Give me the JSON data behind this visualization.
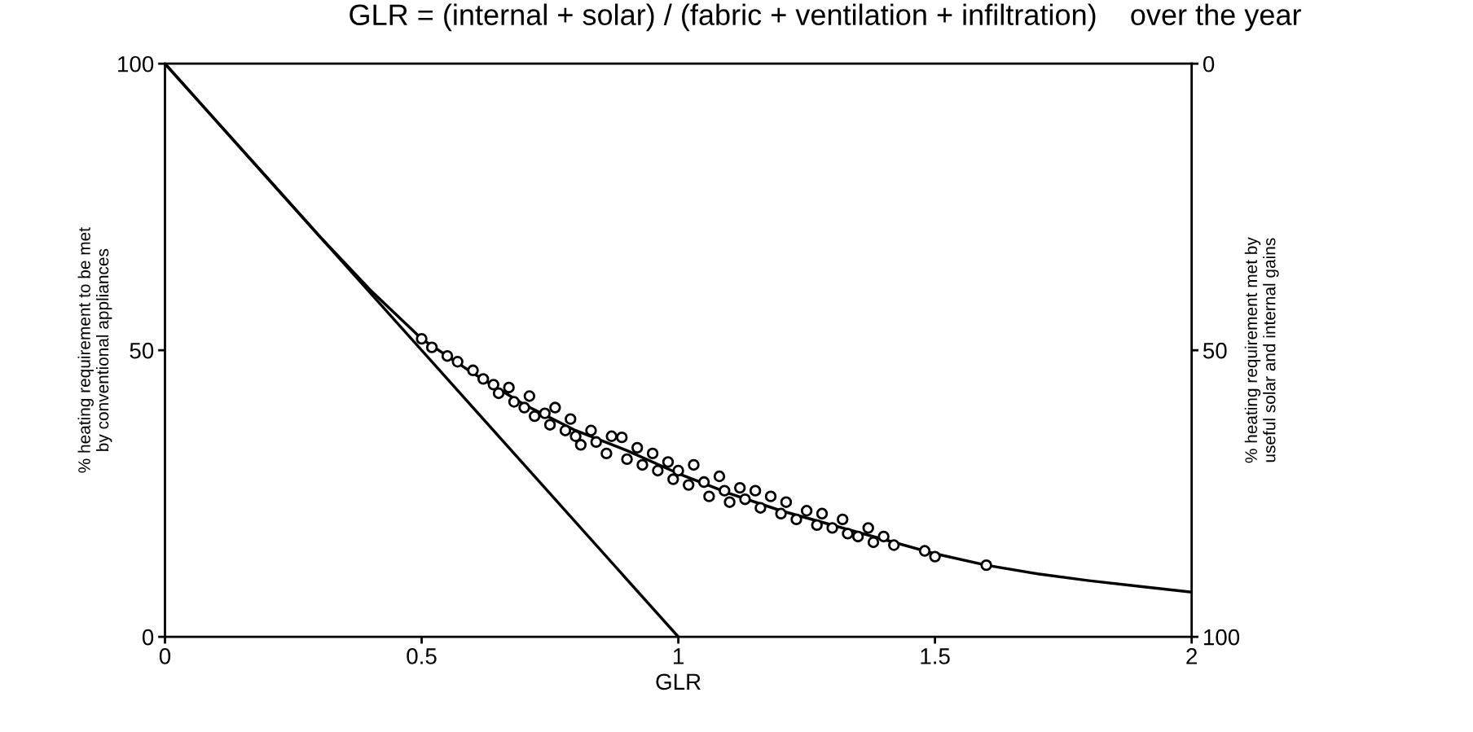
{
  "chart_data": {
    "type": "scatter",
    "title": "GLR = (internal + solar) / (fabric + ventilation + infiltration)    over the year",
    "xlabel": "GLR",
    "ylabel": "% heating requirement to be met\nby conventional appliances",
    "y2label": "% heating requirement met by\nuseful solar and internal gains",
    "xlim": [
      0,
      2
    ],
    "xticks": [
      0,
      0.5,
      1,
      1.5,
      2
    ],
    "ylim": [
      0,
      100
    ],
    "yticks": [
      0,
      50,
      100
    ],
    "y2lim": [
      100,
      0
    ],
    "y2ticks": [
      0,
      50,
      100
    ],
    "grid": false,
    "legend": false,
    "series": [
      {
        "type": "line",
        "color": "#000000",
        "x": [
          0,
          0.1,
          0.2,
          0.3,
          0.4,
          0.5,
          0.6,
          0.7,
          0.8,
          0.9,
          1.0,
          1.1,
          1.2,
          1.3,
          1.4,
          1.5,
          1.6,
          1.7,
          1.8,
          1.9,
          2.0
        ],
        "values": [
          100,
          90,
          80,
          70,
          60.5,
          52,
          46,
          40.5,
          36,
          32.5,
          28.5,
          25,
          22,
          19.5,
          17,
          14.5,
          12.5,
          11,
          9.8,
          8.8,
          7.8
        ],
        "marker": "none",
        "line_style": "solid"
      },
      {
        "type": "line",
        "color": "#000000",
        "x": [
          0,
          1
        ],
        "values": [
          100,
          0
        ],
        "marker": "none",
        "line_style": "solid"
      },
      {
        "color": "#000000",
        "marker": "circle",
        "x": [
          0.5,
          0.52,
          0.55,
          0.57,
          0.6,
          0.62,
          0.64,
          0.65,
          0.67,
          0.68,
          0.7,
          0.71,
          0.72,
          0.74,
          0.75,
          0.76,
          0.78,
          0.79,
          0.8,
          0.81,
          0.83,
          0.84,
          0.86,
          0.87,
          0.89,
          0.9,
          0.92,
          0.93,
          0.95,
          0.96,
          0.98,
          0.99,
          1.0,
          1.02,
          1.03,
          1.05,
          1.06,
          1.08,
          1.09,
          1.1,
          1.12,
          1.13,
          1.15,
          1.16,
          1.18,
          1.2,
          1.21,
          1.23,
          1.25,
          1.27,
          1.28,
          1.3,
          1.32,
          1.33,
          1.35,
          1.37,
          1.38,
          1.4,
          1.42,
          1.48,
          1.5,
          1.6
        ],
        "values": [
          52,
          50.5,
          49,
          48,
          46.5,
          45,
          44,
          42.5,
          43.5,
          41,
          40,
          42,
          38.5,
          39,
          37,
          40,
          36,
          38,
          35,
          33.5,
          36,
          34,
          32,
          35,
          34.8,
          31,
          33,
          30,
          32,
          29,
          30.5,
          27.5,
          29,
          26.5,
          30,
          27,
          24.5,
          28,
          25.5,
          23.5,
          26,
          24,
          25.5,
          22.5,
          24.5,
          21.5,
          23.5,
          20.5,
          22,
          19.5,
          21.5,
          19,
          20.5,
          18,
          17.5,
          19,
          16.5,
          17.5,
          16,
          15,
          14,
          12.5
        ]
      }
    ]
  }
}
